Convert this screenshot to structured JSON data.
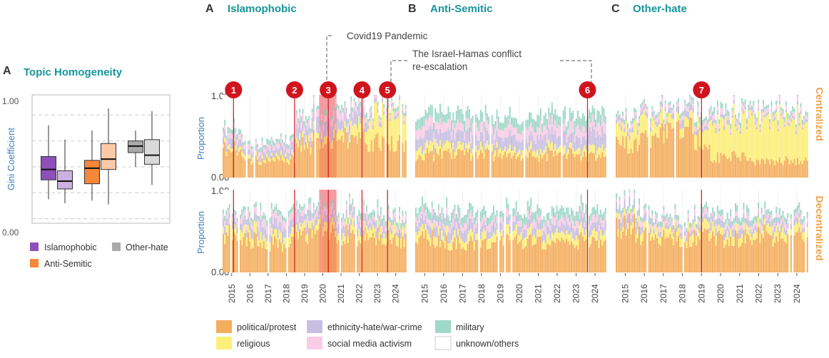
{
  "panels": {
    "box_label": "A",
    "box_title": "Topic Homogeneity",
    "a_label": "A",
    "a_title": "Islamophobic",
    "b_label": "B",
    "b_title": "Anti-Semitic",
    "c_label": "C",
    "c_title": "Other-hate"
  },
  "annotations": {
    "covid": "Covid19 Pandemic",
    "israel_line1": "The Israel-Hamas conflict",
    "israel_line2": "re-escalation"
  },
  "row_labels": {
    "top": "Centralized",
    "bottom": "Decentralized"
  },
  "axis": {
    "ylabel": "Proportion",
    "y_top": "1.00",
    "y_bottom": "0.00"
  },
  "colors": {
    "political": "#f4ae5f",
    "religious": "#fbee79",
    "ethnicity": "#c7bfe2",
    "social": "#f9cde6",
    "military": "#9fd9c8",
    "unknown": "#ffffff",
    "marker": "#d0141e",
    "title": "#17959c",
    "side": "#f0a24a"
  },
  "markers": [
    {
      "label": "1",
      "panel": "A",
      "date": 2015.1
    },
    {
      "label": "2",
      "panel": "A",
      "date": 2018.45
    },
    {
      "label": "3",
      "panel": "A",
      "date": 2020.3
    },
    {
      "label": "4",
      "panel": "A",
      "date": 2022.15
    },
    {
      "label": "5",
      "panel": "A",
      "date": 2023.55
    },
    {
      "label": "6",
      "panel": "B",
      "date": 2023.6
    },
    {
      "label": "7",
      "panel": "C",
      "date": 2019.0
    }
  ],
  "covid_period": [
    2019.8,
    2020.75
  ],
  "legend": [
    {
      "key": "political",
      "label": "political/protest"
    },
    {
      "key": "religious",
      "label": "religious"
    },
    {
      "key": "ethnicity",
      "label": "ethnicity-hate/war-crime"
    },
    {
      "key": "social",
      "label": "social media activism"
    },
    {
      "key": "military",
      "label": "military"
    },
    {
      "key": "unknown",
      "label": "unknown/others"
    }
  ],
  "chart_data": [
    {
      "type": "box",
      "title": "Topic Homogeneity",
      "ylabel": "Gini Coefficient",
      "ylim": [
        0.0,
        1.0
      ],
      "yticks": [
        "0.00",
        "1.00"
      ],
      "groups": [
        {
          "name": "Islamophobic",
          "color": "#8e4fb8",
          "boxes": [
            {
              "variant": "Centralized",
              "min": 0.25,
              "q1": 0.4,
              "median": 0.48,
              "q3": 0.58,
              "max": 0.82
            },
            {
              "variant": "Decentralized",
              "min": 0.22,
              "q1": 0.33,
              "median": 0.39,
              "q3": 0.47,
              "max": 0.71
            }
          ]
        },
        {
          "name": "Anti-Semitic",
          "color": "#f7873a",
          "boxes": [
            {
              "variant": "Centralized",
              "min": 0.24,
              "q1": 0.37,
              "median": 0.49,
              "q3": 0.55,
              "max": 0.78
            },
            {
              "variant": "Decentralized",
              "min": 0.21,
              "q1": 0.48,
              "median": 0.56,
              "q3": 0.68,
              "max": 0.95
            }
          ]
        },
        {
          "name": "Other-hate",
          "color": "#aaaaaa",
          "boxes": [
            {
              "variant": "Centralized",
              "min": 0.5,
              "q1": 0.61,
              "median": 0.66,
              "q3": 0.7,
              "max": 0.78
            },
            {
              "variant": "Decentralized",
              "min": 0.36,
              "q1": 0.52,
              "median": 0.59,
              "q3": 0.71,
              "max": 0.93
            }
          ]
        }
      ],
      "legend": [
        "Islamophobic",
        "Other-hate",
        "Anti-Semitic"
      ]
    },
    {
      "type": "stacked-bar",
      "x_range": [
        2014.5,
        2024.6
      ],
      "x_ticks": [
        "2015",
        "2016",
        "2017",
        "2018",
        "2019",
        "2020",
        "2021",
        "2022",
        "2023",
        "2024"
      ],
      "y_range": [
        0,
        1
      ],
      "series_order": [
        "political",
        "religious",
        "ethnicity",
        "social",
        "military"
      ],
      "panels": [
        {
          "panel": "A",
          "row": "Centralized",
          "series": [
            {
              "name": "political/protest",
              "key": "political",
              "values": [
                0.35,
                0.22,
                0.2,
                0.22,
                0.4,
                0.45,
                0.5,
                0.46,
                0.42,
                0.4
              ]
            },
            {
              "name": "religious",
              "key": "religious",
              "values": [
                0.05,
                0.05,
                0.04,
                0.05,
                0.08,
                0.08,
                0.1,
                0.15,
                0.35,
                0.38
              ]
            },
            {
              "name": "ethnicity-hate/war-crime",
              "key": "ethnicity",
              "values": [
                0.1,
                0.08,
                0.08,
                0.1,
                0.15,
                0.18,
                0.15,
                0.13,
                0.05,
                0.04
              ]
            },
            {
              "name": "social media activism",
              "key": "social",
              "values": [
                0.06,
                0.05,
                0.06,
                0.06,
                0.08,
                0.08,
                0.1,
                0.08,
                0.04,
                0.04
              ]
            },
            {
              "name": "military",
              "key": "military",
              "values": [
                0.06,
                0.04,
                0.05,
                0.05,
                0.06,
                0.06,
                0.05,
                0.05,
                0.04,
                0.04
              ]
            }
          ]
        },
        {
          "panel": "A",
          "row": "Decentralized",
          "series": [
            {
              "name": "political/protest",
              "key": "political",
              "values": [
                0.45,
                0.38,
                0.35,
                0.35,
                0.42,
                0.46,
                0.45,
                0.4,
                0.42,
                0.4
              ]
            },
            {
              "name": "religious",
              "key": "religious",
              "values": [
                0.1,
                0.12,
                0.1,
                0.1,
                0.1,
                0.1,
                0.1,
                0.12,
                0.1,
                0.12
              ]
            },
            {
              "name": "ethnicity-hate/war-crime",
              "key": "ethnicity",
              "values": [
                0.08,
                0.1,
                0.12,
                0.12,
                0.12,
                0.1,
                0.1,
                0.1,
                0.08,
                0.06
              ]
            },
            {
              "name": "social media activism",
              "key": "social",
              "values": [
                0.07,
                0.08,
                0.1,
                0.1,
                0.08,
                0.08,
                0.08,
                0.08,
                0.06,
                0.06
              ]
            },
            {
              "name": "military",
              "key": "military",
              "values": [
                0.05,
                0.06,
                0.07,
                0.06,
                0.06,
                0.05,
                0.06,
                0.08,
                0.08,
                0.06
              ]
            }
          ]
        },
        {
          "panel": "B",
          "row": "Centralized",
          "series": [
            {
              "name": "political/protest",
              "key": "political",
              "values": [
                0.28,
                0.3,
                0.28,
                0.28,
                0.28,
                0.26,
                0.27,
                0.28,
                0.28,
                0.25
              ]
            },
            {
              "name": "religious",
              "key": "religious",
              "values": [
                0.1,
                0.1,
                0.08,
                0.08,
                0.08,
                0.08,
                0.08,
                0.08,
                0.07,
                0.1
              ]
            },
            {
              "name": "ethnicity-hate/war-crime",
              "key": "ethnicity",
              "values": [
                0.15,
                0.15,
                0.15,
                0.15,
                0.14,
                0.15,
                0.15,
                0.15,
                0.15,
                0.17
              ]
            },
            {
              "name": "social media activism",
              "key": "social",
              "values": [
                0.12,
                0.12,
                0.12,
                0.12,
                0.12,
                0.12,
                0.13,
                0.13,
                0.13,
                0.12
              ]
            },
            {
              "name": "military",
              "key": "military",
              "values": [
                0.13,
                0.13,
                0.13,
                0.12,
                0.12,
                0.12,
                0.13,
                0.13,
                0.13,
                0.13
              ]
            }
          ]
        },
        {
          "panel": "B",
          "row": "Decentralized",
          "series": [
            {
              "name": "political/protest",
              "key": "political",
              "values": [
                0.4,
                0.35,
                0.35,
                0.36,
                0.36,
                0.36,
                0.38,
                0.38,
                0.38,
                0.38
              ]
            },
            {
              "name": "religious",
              "key": "religious",
              "values": [
                0.1,
                0.1,
                0.1,
                0.1,
                0.1,
                0.1,
                0.1,
                0.1,
                0.1,
                0.1
              ]
            },
            {
              "name": "ethnicity-hate/war-crime",
              "key": "ethnicity",
              "values": [
                0.1,
                0.12,
                0.12,
                0.1,
                0.1,
                0.1,
                0.1,
                0.1,
                0.1,
                0.1
              ]
            },
            {
              "name": "social media activism",
              "key": "social",
              "values": [
                0.08,
                0.08,
                0.08,
                0.08,
                0.08,
                0.08,
                0.08,
                0.08,
                0.08,
                0.08
              ]
            },
            {
              "name": "military",
              "key": "military",
              "values": [
                0.1,
                0.1,
                0.1,
                0.1,
                0.1,
                0.1,
                0.1,
                0.1,
                0.1,
                0.1
              ]
            }
          ]
        },
        {
          "panel": "C",
          "row": "Centralized",
          "series": [
            {
              "name": "political/protest",
              "key": "political",
              "values": [
                0.4,
                0.45,
                0.55,
                0.6,
                0.45,
                0.25,
                0.25,
                0.2,
                0.2,
                0.2
              ]
            },
            {
              "name": "religious",
              "key": "religious",
              "values": [
                0.2,
                0.25,
                0.15,
                0.1,
                0.22,
                0.4,
                0.45,
                0.5,
                0.52,
                0.52
              ]
            },
            {
              "name": "ethnicity-hate/war-crime",
              "key": "ethnicity",
              "values": [
                0.05,
                0.05,
                0.05,
                0.08,
                0.05,
                0.05,
                0.03,
                0.03,
                0.03,
                0.03
              ]
            },
            {
              "name": "social media activism",
              "key": "social",
              "values": [
                0.05,
                0.05,
                0.05,
                0.06,
                0.05,
                0.06,
                0.05,
                0.05,
                0.05,
                0.05
              ]
            },
            {
              "name": "military",
              "key": "military",
              "values": [
                0.05,
                0.04,
                0.04,
                0.04,
                0.06,
                0.06,
                0.06,
                0.05,
                0.05,
                0.05
              ]
            }
          ]
        },
        {
          "panel": "C",
          "row": "Decentralized",
          "series": [
            {
              "name": "political/protest",
              "key": "political",
              "values": [
                0.55,
                0.45,
                0.4,
                0.42,
                0.45,
                0.42,
                0.42,
                0.45,
                0.4,
                0.42
              ]
            },
            {
              "name": "religious",
              "key": "religious",
              "values": [
                0.08,
                0.1,
                0.1,
                0.1,
                0.1,
                0.1,
                0.1,
                0.1,
                0.1,
                0.1
              ]
            },
            {
              "name": "ethnicity-hate/war-crime",
              "key": "ethnicity",
              "values": [
                0.1,
                0.08,
                0.06,
                0.06,
                0.06,
                0.08,
                0.08,
                0.06,
                0.08,
                0.06
              ]
            },
            {
              "name": "social media activism",
              "key": "social",
              "values": [
                0.06,
                0.06,
                0.06,
                0.06,
                0.06,
                0.06,
                0.06,
                0.06,
                0.06,
                0.06
              ]
            },
            {
              "name": "military",
              "key": "military",
              "values": [
                0.06,
                0.06,
                0.05,
                0.06,
                0.06,
                0.07,
                0.08,
                0.07,
                0.07,
                0.07
              ]
            }
          ]
        }
      ]
    }
  ]
}
